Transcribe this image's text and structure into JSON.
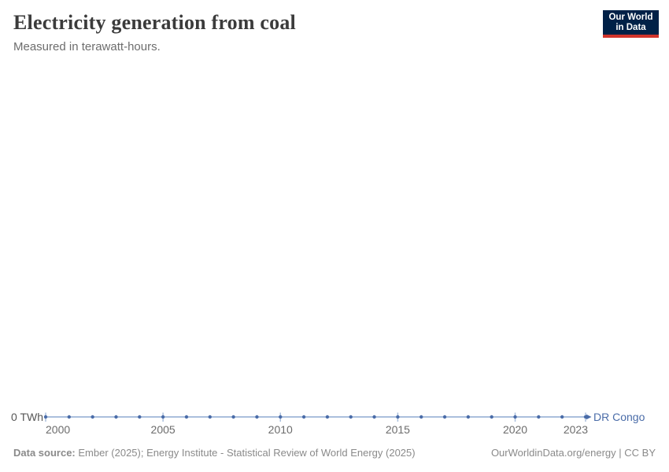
{
  "header": {
    "title": "Electricity generation from coal",
    "subtitle": "Measured in terawatt-hours."
  },
  "logo": {
    "line1": "Our World",
    "line2": "in Data"
  },
  "chart_data": {
    "type": "line",
    "title": "Electricity generation from coal",
    "subtitle": "Measured in terawatt-hours.",
    "unit": "TWh",
    "grid": false,
    "legend_position": "end-of-line-label",
    "x": [
      2000,
      2001,
      2002,
      2003,
      2004,
      2005,
      2006,
      2007,
      2008,
      2009,
      2010,
      2011,
      2012,
      2013,
      2014,
      2015,
      2016,
      2017,
      2018,
      2019,
      2020,
      2021,
      2022,
      2023
    ],
    "series": [
      {
        "name": "DR Congo",
        "values": [
          0,
          0,
          0,
          0,
          0,
          0,
          0,
          0,
          0,
          0,
          0,
          0,
          0,
          0,
          0,
          0,
          0,
          0,
          0,
          0,
          0,
          0,
          0,
          0
        ]
      }
    ],
    "x_tick_labels": [
      "2000",
      "2005",
      "2010",
      "2015",
      "2020",
      "2023"
    ],
    "y_tick_labels": [
      "0 TWh"
    ],
    "ylim": [
      0,
      0
    ]
  },
  "footer": {
    "source_label": "Data source:",
    "source_text": "Ember (2025); Energy Institute - Statistical Review of World Energy (2025)",
    "credit": "OurWorldinData.org/energy | CC BY"
  },
  "colors": {
    "series": "#4a6ca8",
    "line": "#aabfdc",
    "title": "#3b3b3b",
    "subtitle": "#6d6d6d",
    "axis_text": "#6c6c6c",
    "footer_text": "#8a8a8a",
    "logo_bg": "#002147",
    "logo_bar": "#d0342c"
  }
}
